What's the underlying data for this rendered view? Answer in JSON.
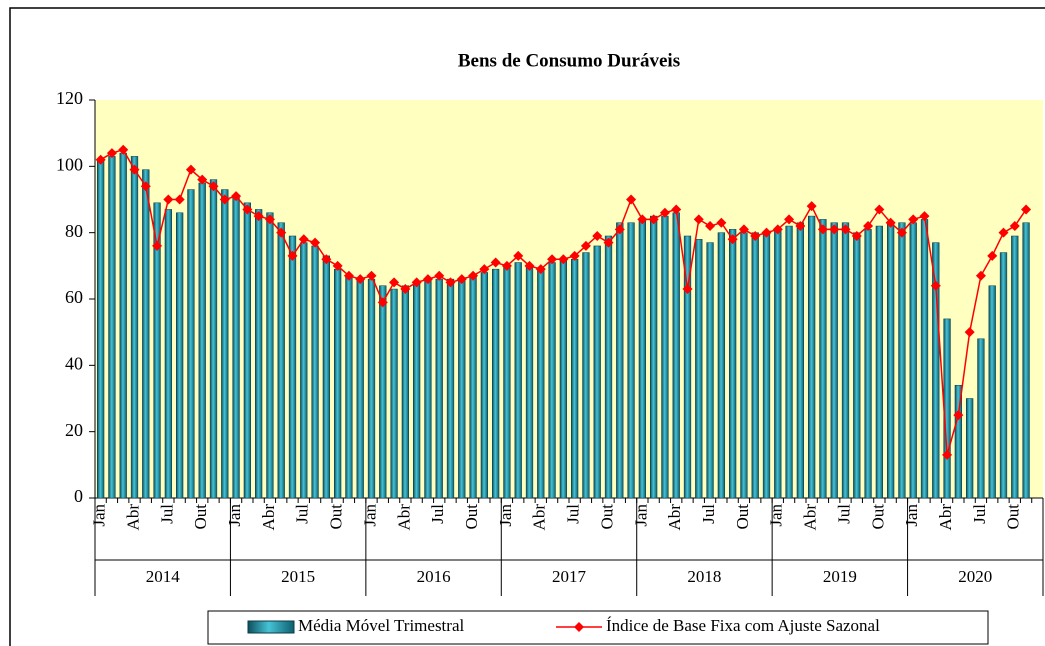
{
  "chart_data": {
    "type": "bar_line",
    "title": "Bens de Consumo Duráveis",
    "categories": [
      "Jan",
      null,
      null,
      "Abr",
      null,
      null,
      "Jul",
      null,
      null,
      "Out",
      null,
      null,
      "Jan",
      null,
      null,
      "Abr",
      null,
      null,
      "Jul",
      null,
      null,
      "Out",
      null,
      null,
      "Jan",
      null,
      null,
      "Abr",
      null,
      null,
      "Jul",
      null,
      null,
      "Out",
      null,
      null,
      "Jan",
      null,
      null,
      "Abr",
      null,
      null,
      "Jul",
      null,
      null,
      "Out",
      null,
      null,
      "Jan",
      null,
      null,
      "Abr",
      null,
      null,
      "Jul",
      null,
      null,
      "Out",
      null,
      null,
      "Jan",
      null,
      null,
      "Abr",
      null,
      null,
      "Jul",
      null,
      null,
      "Out",
      null,
      null,
      "Jan",
      null,
      null,
      "Abr",
      null,
      null,
      "Jul",
      null,
      null,
      "Out",
      null,
      null
    ],
    "groups": [
      "2014",
      "2015",
      "2016",
      "2017",
      "2018",
      "2019",
      "2020"
    ],
    "series": [
      {
        "name": "Média Móvel Trimestral",
        "kind": "bar",
        "color": "#1b8a9e",
        "values": [
          102,
          103,
          104,
          103,
          99,
          89,
          87,
          86,
          93,
          95,
          96,
          93,
          91,
          89,
          87,
          86,
          83,
          79,
          77,
          76,
          73,
          69,
          67,
          66,
          66,
          64,
          63,
          64,
          65,
          66,
          66,
          66,
          66,
          67,
          68,
          69,
          70,
          71,
          70,
          69,
          71,
          72,
          72,
          74,
          76,
          79,
          83,
          83,
          84,
          85,
          85,
          86,
          79,
          78,
          77,
          80,
          81,
          80,
          80,
          80,
          81,
          82,
          83,
          85,
          84,
          83,
          83,
          80,
          81,
          82,
          83,
          83,
          83,
          84,
          77,
          54,
          34,
          30,
          48,
          64,
          74,
          79,
          83,
          null
        ]
      },
      {
        "name": "Índice de Base Fixa com Ajuste Sazonal",
        "kind": "line",
        "color": "#ff0000",
        "values": [
          102,
          104,
          105,
          99,
          94,
          76,
          90,
          90,
          99,
          96,
          94,
          90,
          91,
          87,
          85,
          84,
          80,
          73,
          78,
          77,
          72,
          70,
          67,
          66,
          67,
          59,
          65,
          63,
          65,
          66,
          67,
          65,
          66,
          67,
          69,
          71,
          70,
          73,
          70,
          69,
          72,
          72,
          73,
          76,
          79,
          77,
          81,
          90,
          84,
          84,
          86,
          87,
          63,
          84,
          82,
          83,
          78,
          81,
          79,
          80,
          81,
          84,
          82,
          88,
          81,
          81,
          81,
          79,
          82,
          87,
          83,
          80,
          84,
          85,
          64,
          13,
          25,
          50,
          67,
          73,
          80,
          82,
          87,
          null
        ]
      }
    ],
    "ylim": [
      0,
      120
    ],
    "yticks": [
      0,
      20,
      40,
      60,
      80,
      100,
      120
    ],
    "grid": false,
    "plot_background": "#ffffc0",
    "legend": "bottom"
  }
}
